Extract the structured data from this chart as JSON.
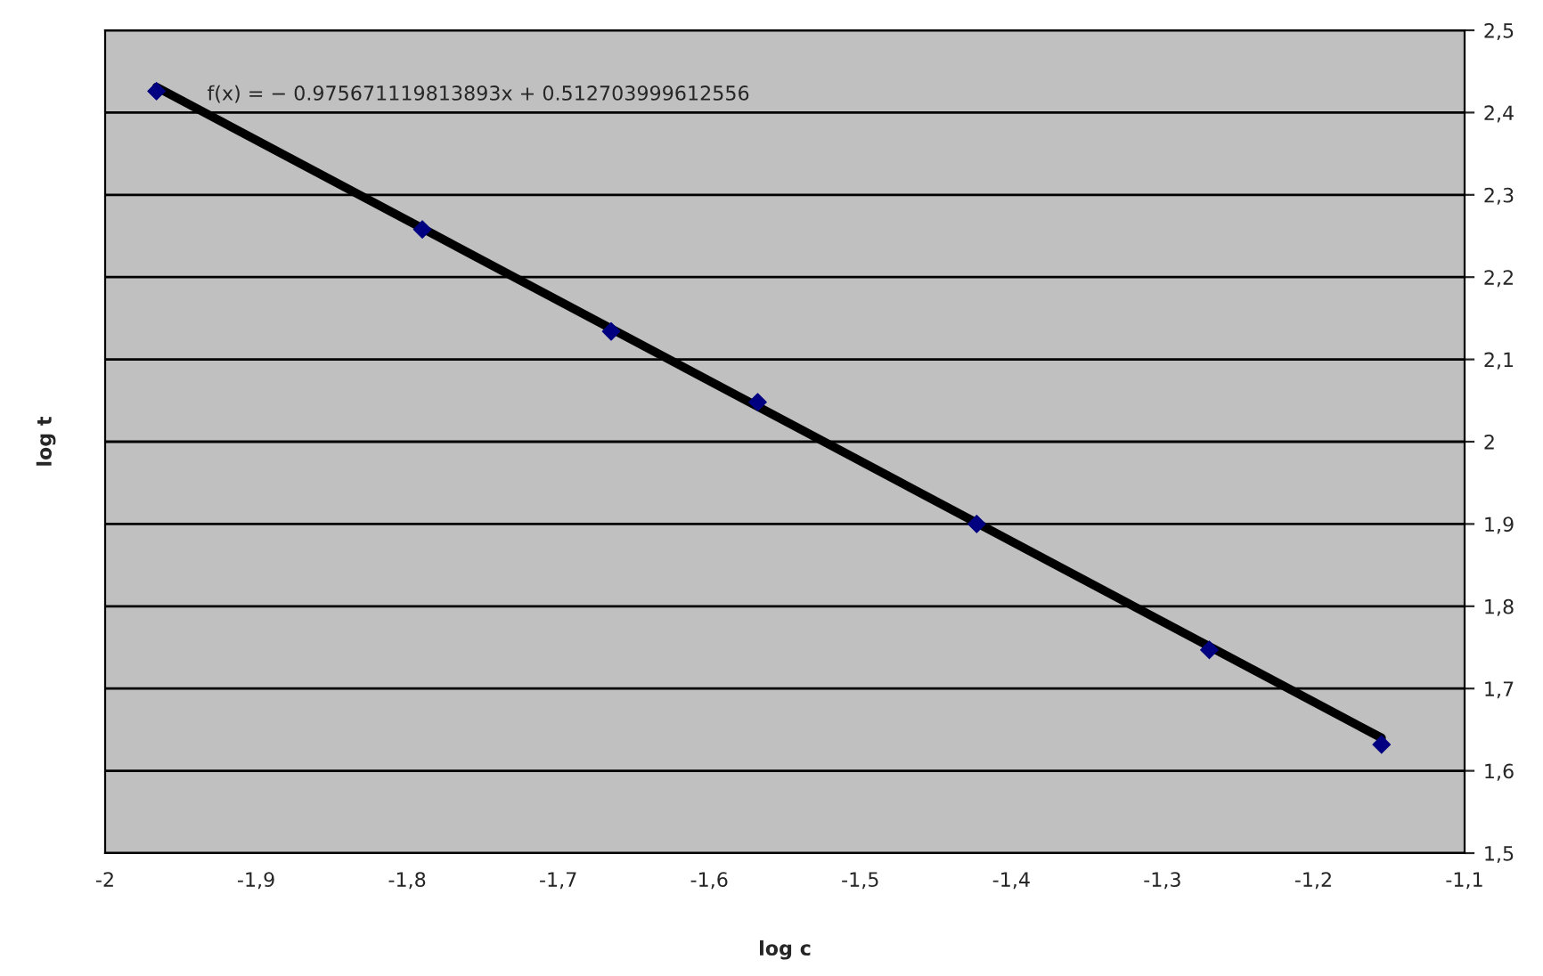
{
  "chart_data": {
    "type": "scatter",
    "xlabel": "log c",
    "ylabel": "log t",
    "series": [
      {
        "color": "#000080",
        "marker": "diamond",
        "x": [
          -1.966,
          -1.79,
          -1.665,
          -1.568,
          -1.423,
          -1.269,
          -1.155
        ],
        "values": [
          2.426,
          2.258,
          2.134,
          2.048,
          1.9,
          1.747,
          1.632
        ]
      },
      {
        "type": "line",
        "color": "#000000",
        "marker": "none",
        "line_style": "solid",
        "x": [
          -1.966,
          -1.155
        ],
        "values": [
          2.431,
          1.64
        ]
      }
    ],
    "xlim": [
      -2,
      -1.1
    ],
    "xticks": [
      {
        "value": -2,
        "label": "-2"
      },
      {
        "value": -1.9,
        "label": "-1,9"
      },
      {
        "value": -1.8,
        "label": "-1,8"
      },
      {
        "value": -1.7,
        "label": "-1,7"
      },
      {
        "value": -1.6,
        "label": "-1,6"
      },
      {
        "value": -1.5,
        "label": "-1,5"
      },
      {
        "value": -1.4,
        "label": "-1,4"
      },
      {
        "value": -1.3,
        "label": "-1,3"
      },
      {
        "value": -1.2,
        "label": "-1,2"
      },
      {
        "value": -1.1,
        "label": "-1,1"
      }
    ],
    "ylim": [
      1.5,
      2.5
    ],
    "yticks": [
      {
        "value": 1.5,
        "label": "1,5"
      },
      {
        "value": 1.6,
        "label": "1,6"
      },
      {
        "value": 1.7,
        "label": "1,7"
      },
      {
        "value": 1.8,
        "label": "1,8"
      },
      {
        "value": 1.9,
        "label": "1,9"
      },
      {
        "value": 2,
        "label": "2"
      },
      {
        "value": 2.1,
        "label": "2,1"
      },
      {
        "value": 2.2,
        "label": "2,2"
      },
      {
        "value": 2.3,
        "label": "2,3"
      },
      {
        "value": 2.4,
        "label": "2,4"
      },
      {
        "value": 2.5,
        "label": "2,5"
      }
    ],
    "annotations": [
      "f(x) = − 0.975671119813893x + 0.512703999612556"
    ],
    "grid": "y",
    "legend": false
  }
}
